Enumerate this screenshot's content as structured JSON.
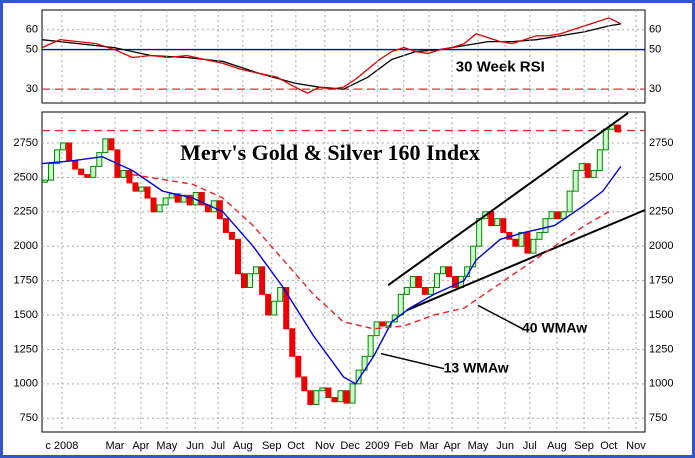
{
  "chart_data": [
    {
      "type": "line",
      "xlim": [
        0,
        100
      ],
      "ylim": [
        23,
        70
      ],
      "yticks": [
        30,
        50,
        60
      ],
      "grid": true,
      "annotations": [
        {
          "text": "30 Week RSI",
          "x": 76,
          "y": 41
        }
      ],
      "reference_lines": [
        {
          "value": 50,
          "color": "#0000cc",
          "dash": false
        },
        {
          "value": 30,
          "color": "#e03030",
          "dash": true
        }
      ],
      "series": [
        {
          "color": "#000000",
          "x": [
            0,
            6,
            12,
            18,
            24,
            30,
            36,
            42,
            46,
            50,
            54,
            58,
            62,
            66,
            70,
            74,
            78,
            82,
            86,
            90,
            94,
            96
          ],
          "values": [
            55,
            53,
            51,
            47,
            46,
            44,
            38,
            33,
            31,
            30,
            36,
            45,
            49,
            50,
            52,
            54,
            54,
            55,
            57,
            59,
            62,
            63
          ]
        },
        {
          "color": "#dd0000",
          "x": [
            0,
            3,
            6,
            9,
            12,
            15,
            18,
            21,
            24,
            27,
            30,
            33,
            36,
            39,
            42,
            44,
            46,
            48,
            50,
            52,
            54,
            56,
            58,
            60,
            62,
            64,
            66,
            68,
            70,
            72,
            74,
            76,
            78,
            80,
            82,
            84,
            86,
            88,
            90,
            92,
            94,
            96
          ],
          "values": [
            51,
            55,
            54,
            53,
            50,
            46,
            47,
            46,
            47,
            45,
            43,
            40,
            38,
            36,
            31,
            28,
            31,
            30,
            31,
            35,
            40,
            45,
            49,
            51,
            49,
            48,
            50,
            51,
            53,
            58,
            56,
            54,
            53,
            55,
            57,
            57,
            58,
            60,
            62,
            64,
            66,
            63
          ]
        }
      ]
    },
    {
      "type": "candlestick",
      "xlim": [
        0,
        100
      ],
      "ylim": [
        650,
        2975
      ],
      "yticks": [
        750,
        1000,
        1250,
        1500,
        1750,
        2000,
        2250,
        2500,
        2750
      ],
      "grid": true,
      "xticks": [
        {
          "value": 3.3,
          "label": "c 2008"
        },
        {
          "value": 12.1,
          "label": "Mar"
        },
        {
          "value": 16.4,
          "label": "Apr"
        },
        {
          "value": 20.7,
          "label": "May"
        },
        {
          "value": 25.4,
          "label": "Jun"
        },
        {
          "value": 29.2,
          "label": "Jul"
        },
        {
          "value": 33.3,
          "label": "Aug"
        },
        {
          "value": 38.1,
          "label": "Sep"
        },
        {
          "value": 42.1,
          "label": "Oct"
        },
        {
          "value": 46.9,
          "label": "Nov"
        },
        {
          "value": 51.1,
          "label": "Dec"
        },
        {
          "value": 55.6,
          "label": "2009"
        },
        {
          "value": 60,
          "label": "Feb"
        },
        {
          "value": 64.2,
          "label": "Mar"
        },
        {
          "value": 68,
          "label": "Apr"
        },
        {
          "value": 72.3,
          "label": "May"
        },
        {
          "value": 76.8,
          "label": "Jun"
        },
        {
          "value": 80.9,
          "label": "Jul"
        },
        {
          "value": 85.4,
          "label": "Aug"
        },
        {
          "value": 89.9,
          "label": "Sep"
        },
        {
          "value": 94,
          "label": "Oct"
        },
        {
          "value": 98.5,
          "label": "Nov"
        }
      ],
      "title": "Merv's Gold & Silver 160 Index",
      "up_color": "#008800",
      "down_color": "#ee0000",
      "values": [
        2480,
        2600,
        2700,
        2750,
        2620,
        2560,
        2520,
        2500,
        2580,
        2680,
        2780,
        2700,
        2500,
        2550,
        2460,
        2400,
        2430,
        2350,
        2250,
        2300,
        2350,
        2380,
        2320,
        2370,
        2300,
        2390,
        2300,
        2250,
        2330,
        2200,
        2100,
        2050,
        1800,
        1700,
        1800,
        1850,
        1650,
        1500,
        1600,
        1700,
        1400,
        1200,
        1050,
        950,
        850,
        950,
        970,
        900,
        870,
        950,
        860,
        1000,
        1100,
        1200,
        1350,
        1450,
        1420,
        1450,
        1500,
        1650,
        1700,
        1780,
        1700,
        1650,
        1700,
        1800,
        1850,
        1780,
        1700,
        1780,
        1850,
        2000,
        2200,
        2250,
        2150,
        2200,
        2100,
        2050,
        2000,
        2100,
        1950,
        2050,
        2100,
        2200,
        2250,
        2200,
        2250,
        2400,
        2550,
        2600,
        2500,
        2550,
        2700,
        2850,
        2880,
        2830
      ],
      "reference_lines": [
        {
          "value": 2840,
          "color": "#e03030",
          "dash": true
        }
      ],
      "series": [
        {
          "name": "13 WMAw",
          "color": "#0000dd",
          "dash": false,
          "x": [
            0,
            5,
            10,
            15,
            20,
            25,
            30,
            35,
            40,
            45,
            50,
            52,
            55,
            58,
            61,
            65,
            70,
            72,
            76,
            80,
            85,
            90,
            93,
            96
          ],
          "values": [
            2600,
            2620,
            2650,
            2550,
            2400,
            2350,
            2250,
            2000,
            1700,
            1350,
            1050,
            1000,
            1200,
            1450,
            1550,
            1650,
            1750,
            1900,
            2050,
            2100,
            2150,
            2300,
            2400,
            2580
          ],
          "label_x": 72,
          "label_y": 1110,
          "pointer": [
            56.2,
            1220
          ]
        },
        {
          "name": "40 WMAw",
          "color": "#ee2222",
          "dash": true,
          "x": [
            15,
            25,
            30,
            35,
            40,
            45,
            50,
            55,
            60,
            65,
            70,
            75,
            80,
            85,
            90,
            94
          ],
          "values": [
            2520,
            2450,
            2350,
            2150,
            1900,
            1650,
            1450,
            1400,
            1420,
            1500,
            1550,
            1700,
            1850,
            2000,
            2150,
            2250
          ],
          "label_x": 85,
          "label_y": 1400,
          "pointer": [
            72.3,
            1570
          ]
        }
      ],
      "trendlines": [
        {
          "x": [
            57.4,
            97.2
          ],
          "values": [
            1717,
            2968
          ]
        },
        {
          "x": [
            60.5,
            100
          ],
          "values": [
            1535,
            2263
          ]
        }
      ]
    }
  ]
}
